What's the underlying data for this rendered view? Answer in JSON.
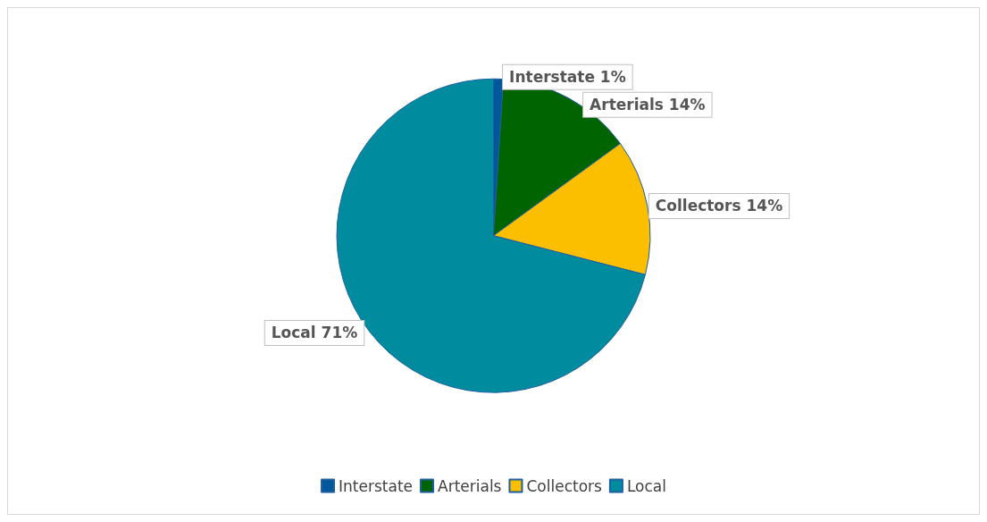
{
  "chart_data": {
    "type": "pie",
    "categories": [
      "Interstate",
      "Arterials",
      "Collectors",
      "Local"
    ],
    "values": [
      1,
      14,
      14,
      71
    ],
    "colors": [
      "#00589c",
      "#006400",
      "#fbbf00",
      "#008c9e"
    ],
    "value_labels": [
      "1%",
      "14%",
      "14%",
      "71%"
    ],
    "legend": "bottom"
  }
}
